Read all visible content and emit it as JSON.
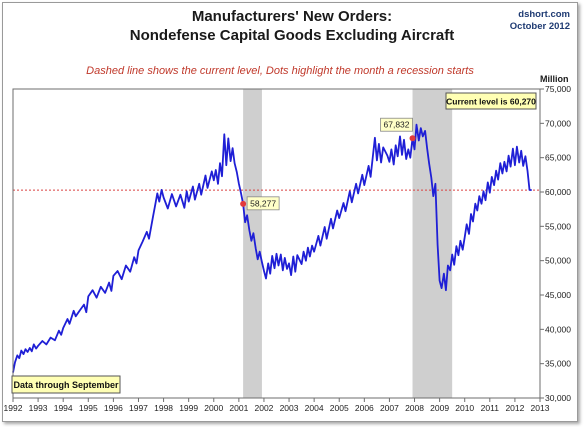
{
  "source": {
    "site": "dshort.com",
    "date": "October 2012"
  },
  "chart_data": {
    "type": "line",
    "title": "Manufacturers' New Orders:",
    "subtitle": "Nondefense Capital Goods Excluding Aircraft",
    "annotation": "Dashed line shows the current level, Dots highlight the month a recession starts",
    "ylabel": "Million",
    "ylim": [
      30000,
      75000
    ],
    "yticks": [
      30000,
      35000,
      40000,
      45000,
      50000,
      55000,
      60000,
      65000,
      70000,
      75000
    ],
    "ytick_labels": [
      "30,000",
      "35,000",
      "40,000",
      "45,000",
      "50,000",
      "55,000",
      "60,000",
      "65,000",
      "70,000",
      "75,000"
    ],
    "xlim": [
      1992.0,
      2013.0
    ],
    "xticks": [
      1992,
      1993,
      1994,
      1995,
      1996,
      1997,
      1998,
      1999,
      2000,
      2001,
      2002,
      2003,
      2004,
      2005,
      2006,
      2007,
      2008,
      2009,
      2010,
      2011,
      2012,
      2013
    ],
    "ytick_side": "right",
    "grid": false,
    "line_color": "#1f1fd6",
    "recession_color": "#cfcfcf",
    "recessions": [
      {
        "start": 2001.17,
        "end": 2001.92
      },
      {
        "start": 2007.92,
        "end": 2009.5
      }
    ],
    "current_level": {
      "value": 60270,
      "label": "Current level is 60,270",
      "color": "#d94040"
    },
    "recession_markers": [
      {
        "x": 2001.17,
        "y": 58277,
        "label": "58,277"
      },
      {
        "x": 2007.92,
        "y": 67832,
        "label": "67,832"
      }
    ],
    "note": "Data through September",
    "series": [
      {
        "points": [
          [
            1992.0,
            33700
          ],
          [
            1992.08,
            35200
          ],
          [
            1992.17,
            36200
          ],
          [
            1992.25,
            35800
          ],
          [
            1992.33,
            36900
          ],
          [
            1992.42,
            36400
          ],
          [
            1992.5,
            37100
          ],
          [
            1992.58,
            36700
          ],
          [
            1992.67,
            37300
          ],
          [
            1992.75,
            36800
          ],
          [
            1992.83,
            37800
          ],
          [
            1992.92,
            37200
          ],
          [
            1993.0,
            37600
          ],
          [
            1993.17,
            38300
          ],
          [
            1993.33,
            37800
          ],
          [
            1993.5,
            38800
          ],
          [
            1993.67,
            38400
          ],
          [
            1993.83,
            39800
          ],
          [
            1993.92,
            39200
          ],
          [
            1994.0,
            40200
          ],
          [
            1994.17,
            41500
          ],
          [
            1994.25,
            40800
          ],
          [
            1994.42,
            42700
          ],
          [
            1994.5,
            41900
          ],
          [
            1994.67,
            42800
          ],
          [
            1994.83,
            43600
          ],
          [
            1994.92,
            42500
          ],
          [
            1995.0,
            44800
          ],
          [
            1995.17,
            45700
          ],
          [
            1995.33,
            44600
          ],
          [
            1995.5,
            46200
          ],
          [
            1995.67,
            45300
          ],
          [
            1995.83,
            46800
          ],
          [
            1995.92,
            45600
          ],
          [
            1996.0,
            47800
          ],
          [
            1996.17,
            48500
          ],
          [
            1996.33,
            47300
          ],
          [
            1996.5,
            49300
          ],
          [
            1996.67,
            48400
          ],
          [
            1996.83,
            50500
          ],
          [
            1996.92,
            49600
          ],
          [
            1997.0,
            51500
          ],
          [
            1997.17,
            52800
          ],
          [
            1997.33,
            54200
          ],
          [
            1997.42,
            53200
          ],
          [
            1997.58,
            56400
          ],
          [
            1997.67,
            58200
          ],
          [
            1997.75,
            59800
          ],
          [
            1997.83,
            58600
          ],
          [
            1997.92,
            60300
          ],
          [
            1998.0,
            59200
          ],
          [
            1998.17,
            57600
          ],
          [
            1998.33,
            59700
          ],
          [
            1998.5,
            57900
          ],
          [
            1998.67,
            59600
          ],
          [
            1998.83,
            57700
          ],
          [
            1998.92,
            60100
          ],
          [
            1999.0,
            58600
          ],
          [
            1999.17,
            60800
          ],
          [
            1999.25,
            58900
          ],
          [
            1999.42,
            61200
          ],
          [
            1999.5,
            59600
          ],
          [
            1999.67,
            62400
          ],
          [
            1999.75,
            60600
          ],
          [
            1999.92,
            63000
          ],
          [
            2000.0,
            61700
          ],
          [
            2000.08,
            63200
          ],
          [
            2000.17,
            61200
          ],
          [
            2000.25,
            64200
          ],
          [
            2000.33,
            62300
          ],
          [
            2000.42,
            68400
          ],
          [
            2000.5,
            63900
          ],
          [
            2000.58,
            67800
          ],
          [
            2000.67,
            64500
          ],
          [
            2000.75,
            66400
          ],
          [
            2000.83,
            64200
          ],
          [
            2000.92,
            62900
          ],
          [
            2001.0,
            61200
          ],
          [
            2001.08,
            59900
          ],
          [
            2001.17,
            58277
          ],
          [
            2001.25,
            55600
          ],
          [
            2001.33,
            56600
          ],
          [
            2001.42,
            54400
          ],
          [
            2001.5,
            52900
          ],
          [
            2001.58,
            54000
          ],
          [
            2001.67,
            51800
          ],
          [
            2001.75,
            50200
          ],
          [
            2001.83,
            51300
          ],
          [
            2001.92,
            49800
          ],
          [
            2002.0,
            48500
          ],
          [
            2002.08,
            47400
          ],
          [
            2002.17,
            49600
          ],
          [
            2002.25,
            48100
          ],
          [
            2002.33,
            50700
          ],
          [
            2002.42,
            48900
          ],
          [
            2002.5,
            51000
          ],
          [
            2002.58,
            49300
          ],
          [
            2002.67,
            50900
          ],
          [
            2002.75,
            48600
          ],
          [
            2002.83,
            50400
          ],
          [
            2002.92,
            48800
          ],
          [
            2003.0,
            49600
          ],
          [
            2003.08,
            47900
          ],
          [
            2003.17,
            50600
          ],
          [
            2003.25,
            48400
          ],
          [
            2003.33,
            50800
          ],
          [
            2003.5,
            49500
          ],
          [
            2003.58,
            51300
          ],
          [
            2003.67,
            50000
          ],
          [
            2003.75,
            51900
          ],
          [
            2003.83,
            50600
          ],
          [
            2003.92,
            52200
          ],
          [
            2004.0,
            51300
          ],
          [
            2004.17,
            53600
          ],
          [
            2004.25,
            52200
          ],
          [
            2004.42,
            54900
          ],
          [
            2004.5,
            53200
          ],
          [
            2004.67,
            56100
          ],
          [
            2004.75,
            54700
          ],
          [
            2004.92,
            57300
          ],
          [
            2005.0,
            56200
          ],
          [
            2005.17,
            58400
          ],
          [
            2005.25,
            57200
          ],
          [
            2005.42,
            60100
          ],
          [
            2005.5,
            58500
          ],
          [
            2005.67,
            61200
          ],
          [
            2005.75,
            59800
          ],
          [
            2005.92,
            62500
          ],
          [
            2006.0,
            61000
          ],
          [
            2006.17,
            63800
          ],
          [
            2006.25,
            62200
          ],
          [
            2006.42,
            67900
          ],
          [
            2006.5,
            64600
          ],
          [
            2006.58,
            67000
          ],
          [
            2006.67,
            64300
          ],
          [
            2006.75,
            66500
          ],
          [
            2006.92,
            65300
          ],
          [
            2007.0,
            64400
          ],
          [
            2007.08,
            66200
          ],
          [
            2007.17,
            64000
          ],
          [
            2007.25,
            66800
          ],
          [
            2007.33,
            65200
          ],
          [
            2007.42,
            68100
          ],
          [
            2007.5,
            65400
          ],
          [
            2007.58,
            67600
          ],
          [
            2007.67,
            64800
          ],
          [
            2007.75,
            66200
          ],
          [
            2007.83,
            65000
          ],
          [
            2007.92,
            67832
          ],
          [
            2008.0,
            66200
          ],
          [
            2008.08,
            69800
          ],
          [
            2008.17,
            67500
          ],
          [
            2008.25,
            69300
          ],
          [
            2008.33,
            68100
          ],
          [
            2008.42,
            68900
          ],
          [
            2008.5,
            66400
          ],
          [
            2008.58,
            64200
          ],
          [
            2008.67,
            62100
          ],
          [
            2008.75,
            59400
          ],
          [
            2008.83,
            61200
          ],
          [
            2008.92,
            52300
          ],
          [
            2009.0,
            47100
          ],
          [
            2009.08,
            46000
          ],
          [
            2009.17,
            48100
          ],
          [
            2009.25,
            45700
          ],
          [
            2009.33,
            49300
          ],
          [
            2009.42,
            48600
          ],
          [
            2009.5,
            50900
          ],
          [
            2009.58,
            49400
          ],
          [
            2009.67,
            52100
          ],
          [
            2009.75,
            50800
          ],
          [
            2009.83,
            52900
          ],
          [
            2009.92,
            51600
          ],
          [
            2010.0,
            53400
          ],
          [
            2010.08,
            55300
          ],
          [
            2010.17,
            53900
          ],
          [
            2010.25,
            56800
          ],
          [
            2010.33,
            55700
          ],
          [
            2010.42,
            58300
          ],
          [
            2010.5,
            57300
          ],
          [
            2010.58,
            59400
          ],
          [
            2010.67,
            58300
          ],
          [
            2010.75,
            60100
          ],
          [
            2010.83,
            58800
          ],
          [
            2010.92,
            61400
          ],
          [
            2011.0,
            59900
          ],
          [
            2011.08,
            62200
          ],
          [
            2011.17,
            61000
          ],
          [
            2011.25,
            63100
          ],
          [
            2011.33,
            61800
          ],
          [
            2011.42,
            64200
          ],
          [
            2011.5,
            62700
          ],
          [
            2011.58,
            64400
          ],
          [
            2011.67,
            63000
          ],
          [
            2011.75,
            65300
          ],
          [
            2011.83,
            63700
          ],
          [
            2011.92,
            66300
          ],
          [
            2012.0,
            63900
          ],
          [
            2012.08,
            66600
          ],
          [
            2012.17,
            64300
          ],
          [
            2012.25,
            66000
          ],
          [
            2012.33,
            63800
          ],
          [
            2012.42,
            65200
          ],
          [
            2012.5,
            63100
          ],
          [
            2012.58,
            60300
          ],
          [
            2012.67,
            60270
          ]
        ]
      }
    ]
  }
}
